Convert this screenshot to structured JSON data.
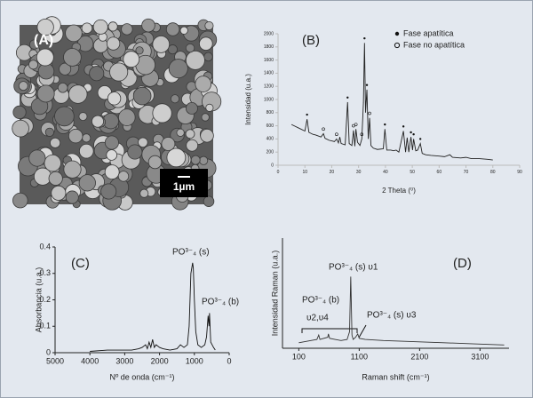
{
  "image_panel": {
    "label": "(A)",
    "scale_bar": "1µm"
  },
  "chart_data": [
    {
      "type": "line",
      "label": "(B)",
      "xlabel": "2 Theta (⁰)",
      "ylabel": "Intensidad (u.a.)",
      "xlim": [
        0,
        90
      ],
      "xticks": [
        0,
        10,
        20,
        30,
        40,
        50,
        60,
        70,
        80,
        90
      ],
      "ylim": [
        0,
        2000
      ],
      "yticks": [
        0,
        200,
        400,
        600,
        800,
        1000,
        1200,
        1400,
        1600,
        1800,
        2000
      ],
      "legend": "top-right",
      "series": [
        {
          "color": "#222",
          "x": [
            5,
            6,
            8,
            10,
            10.8,
            11.5,
            13,
            14,
            16,
            16.9,
            17.5,
            19,
            21,
            21.8,
            22.5,
            23,
            23.5,
            25,
            25.9,
            26.5,
            27.5,
            28.1,
            28.6,
            29,
            29.6,
            30.5,
            31.2,
            31.8,
            32.2,
            32.6,
            33.1,
            33.6,
            34.1,
            34.6,
            35.5,
            37,
            39.2,
            39.8,
            40.5,
            42,
            43,
            44,
            45,
            46.7,
            47.5,
            48.1,
            48.7,
            49.5,
            50.1,
            50.5,
            51.3,
            52,
            53,
            53.7,
            55,
            57,
            60,
            62,
            64,
            65,
            68,
            70,
            72,
            75,
            78,
            80
          ],
          "values": [
            620,
            600,
            560,
            520,
            700,
            500,
            470,
            460,
            430,
            480,
            410,
            380,
            360,
            400,
            340,
            430,
            330,
            310,
            960,
            330,
            300,
            530,
            290,
            550,
            350,
            300,
            400,
            950,
            1860,
            800,
            1150,
            400,
            720,
            300,
            260,
            240,
            250,
            550,
            230,
            230,
            220,
            230,
            200,
            520,
            200,
            420,
            200,
            430,
            230,
            400,
            220,
            230,
            330,
            180,
            160,
            150,
            140,
            130,
            160,
            120,
            110,
            120,
            100,
            100,
            90,
            80
          ]
        },
        {
          "name": "Fase apatítica",
          "marker": "dot",
          "color": "#111",
          "x": [
            10.8,
            25.9,
            32.2,
            33.1,
            39.8,
            46.7,
            49.5,
            50.5,
            53
          ],
          "values": [
            770,
            1030,
            1930,
            1220,
            620,
            590,
            500,
            470,
            400
          ]
        },
        {
          "name": "Fase no apatítica",
          "marker": "circle",
          "color": "#111",
          "x": [
            16.9,
            21.8,
            28.1,
            29,
            31.2,
            34.1
          ],
          "values": [
            550,
            470,
            600,
            620,
            470,
            790
          ]
        }
      ]
    },
    {
      "type": "line",
      "label": "(C)",
      "xlabel": "Nº de onda (cm⁻¹)",
      "ylabel": "Absorbancia (u.a.)",
      "xlim": [
        5000,
        0
      ],
      "xticks": [
        5000,
        4000,
        3000,
        2000,
        1000,
        0
      ],
      "ylim": [
        0,
        0.4
      ],
      "yticks": [
        0,
        0.1,
        0.2,
        0.3,
        0.4
      ],
      "annotations": [
        "PO³⁻₄ (s)",
        "PO³⁻₄ (b)"
      ],
      "series": [
        {
          "color": "#111",
          "x": [
            4000,
            3500,
            3000,
            2800,
            2600,
            2500,
            2400,
            2350,
            2300,
            2250,
            2200,
            2150,
            2100,
            2000,
            1900,
            1700,
            1500,
            1400,
            1300,
            1200,
            1150,
            1100,
            1050,
            1030,
            1000,
            960,
            900,
            800,
            700,
            650,
            605,
            580,
            565,
            530,
            450,
            400
          ],
          "values": [
            0.005,
            0.01,
            0.01,
            0.01,
            0.015,
            0.02,
            0.03,
            0.015,
            0.04,
            0.02,
            0.05,
            0.02,
            0.03,
            0.02,
            0.015,
            0.01,
            0.015,
            0.03,
            0.02,
            0.03,
            0.1,
            0.3,
            0.34,
            0.32,
            0.2,
            0.08,
            0.03,
            0.02,
            0.03,
            0.06,
            0.14,
            0.1,
            0.15,
            0.04,
            0.02,
            0.01
          ]
        }
      ]
    },
    {
      "type": "line",
      "label": "(D)",
      "xlabel": "Raman shift (cm⁻¹)",
      "ylabel": "Intensidad Raman (u.a.)",
      "xlim": [
        -170,
        3580
      ],
      "xticks": [
        100,
        1100,
        2100,
        3100
      ],
      "ylim": [
        0,
        1
      ],
      "annotations": [
        "PO³⁻₄ (s) υ1",
        "PO³⁻₄ (b)",
        "υ2,υ4",
        "PO³⁻₄ (s) υ3"
      ],
      "series": [
        {
          "color": "#333",
          "x": [
            100,
            300,
            400,
            430,
            450,
            580,
            590,
            610,
            700,
            800,
            900,
            940,
            960,
            980,
            1000,
            1040,
            1076,
            1100,
            1200,
            1500,
            2000,
            2500,
            3000,
            3500
          ],
          "values": [
            0.05,
            0.07,
            0.08,
            0.12,
            0.08,
            0.1,
            0.13,
            0.09,
            0.08,
            0.07,
            0.08,
            0.15,
            0.65,
            0.12,
            0.08,
            0.1,
            0.13,
            0.09,
            0.08,
            0.07,
            0.06,
            0.05,
            0.04,
            0.03
          ]
        }
      ]
    }
  ]
}
